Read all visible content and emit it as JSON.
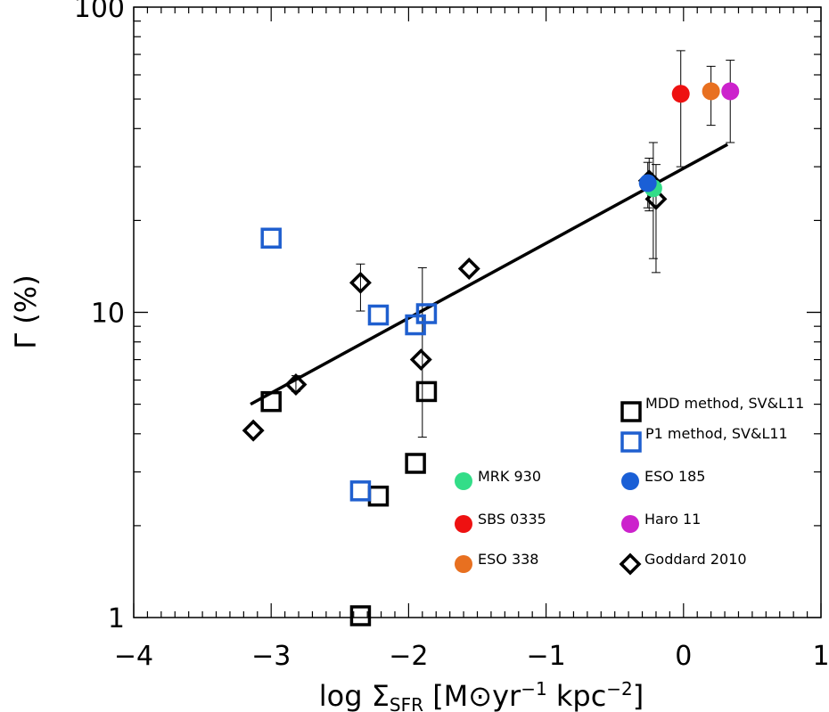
{
  "chart_data": {
    "type": "scatter",
    "title": "",
    "xlabel": "log Σ",
    "xlabel_sub": "SFR",
    "xlabel_units": " [M⊙yr",
    "xlabel_exp1": "−1",
    "xlabel_mid": " kpc",
    "xlabel_exp2": "−2",
    "xlabel_end": "]",
    "ylabel": "Γ (%)",
    "y_scale": "log",
    "xlim": [
      -4,
      1
    ],
    "ylim": [
      1,
      100
    ],
    "x_tick_labels": [
      "−4",
      "−3",
      "−2",
      "−1",
      "0",
      "1"
    ],
    "x_tick_values": [
      -4,
      -3,
      -2,
      -1,
      0,
      1
    ],
    "y_tick_labels": [
      "1",
      "10",
      "100"
    ],
    "y_tick_values": [
      1,
      10,
      100
    ],
    "fit_line": {
      "x": [
        -3.15,
        0.32
      ],
      "y": [
        5.0,
        35.5
      ],
      "color": "#000000"
    },
    "series": [
      {
        "name": "MDD method, SV&L11",
        "marker": "square",
        "color": "#000000",
        "points": [
          {
            "x": -3.0,
            "y": 5.1
          },
          {
            "x": -2.22,
            "y": 2.5
          },
          {
            "x": -1.95,
            "y": 3.2
          },
          {
            "x": -1.87,
            "y": 5.5
          },
          {
            "x": -2.35,
            "y": 1.0
          }
        ]
      },
      {
        "name": "P1 method, SV&L11",
        "marker": "square",
        "color": "#1f5fcf",
        "points": [
          {
            "x": -3.0,
            "y": 17.5
          },
          {
            "x": -2.22,
            "y": 9.8
          },
          {
            "x": -1.95,
            "y": 9.1
          },
          {
            "x": -1.87,
            "y": 9.9
          },
          {
            "x": -2.35,
            "y": 2.6
          }
        ]
      },
      {
        "name": "Goddard 2010",
        "marker": "diamond",
        "color": "#000000",
        "points": [
          {
            "x": -3.13,
            "y": 4.1
          },
          {
            "x": -2.82,
            "y": 5.8,
            "err_lo": 5.5,
            "err_hi": 6.2
          },
          {
            "x": -2.35,
            "y": 12.5,
            "err_lo": 10.1,
            "err_hi": 14.4
          },
          {
            "x": -1.91,
            "y": 7.0
          },
          {
            "x": -1.56,
            "y": 13.9
          },
          {
            "x": -0.25,
            "y": 27.0,
            "err_lo": 21.5,
            "err_hi": 32.0
          },
          {
            "x": -0.2,
            "y": 23.5,
            "err_lo": 13.5,
            "err_hi": 30.5
          },
          {
            "x": -1.9,
            "y": 5.5,
            "err_lo": 3.9,
            "err_hi": 14.0,
            "hidden_marker": true
          }
        ]
      },
      {
        "name": "MRK 930",
        "marker": "circle",
        "color": "#33dd88",
        "points": [
          {
            "x": -0.22,
            "y": 25.5,
            "err_lo": 15.0,
            "err_hi": 36.0
          }
        ]
      },
      {
        "name": "ESO 185",
        "marker": "circle",
        "color": "#1a5fd6",
        "points": [
          {
            "x": -0.26,
            "y": 26.5,
            "err_lo": 22.0,
            "err_hi": 31.0
          }
        ]
      },
      {
        "name": "SBS 0335",
        "marker": "circle",
        "color": "#ee1111",
        "points": [
          {
            "x": -0.02,
            "y": 52.0,
            "err_lo": 30.0,
            "err_hi": 72.0
          }
        ]
      },
      {
        "name": "ESO 338",
        "marker": "circle",
        "color": "#e87020",
        "points": [
          {
            "x": 0.2,
            "y": 53.0,
            "err_lo": 41.0,
            "err_hi": 64.0
          }
        ]
      },
      {
        "name": "Haro 11",
        "marker": "circle",
        "color": "#cc22cc",
        "points": [
          {
            "x": 0.34,
            "y": 53.0,
            "err_lo": 36.0,
            "err_hi": 67.0
          }
        ]
      }
    ],
    "legend": [
      {
        "label": "MDD method, SV&L11",
        "marker": "square",
        "color": "#000000"
      },
      {
        "label": "P1 method, SV&L11",
        "marker": "square",
        "color": "#1f5fcf"
      },
      {
        "label": "MRK 930",
        "marker": "circle",
        "color": "#33dd88"
      },
      {
        "label": "ESO 185",
        "marker": "circle",
        "color": "#1a5fd6"
      },
      {
        "label": "SBS 0335",
        "marker": "circle",
        "color": "#ee1111"
      },
      {
        "label": "Haro 11",
        "marker": "circle",
        "color": "#cc22cc"
      },
      {
        "label": "ESO 338",
        "marker": "circle",
        "color": "#e87020"
      },
      {
        "label": "Goddard 2010",
        "marker": "diamond",
        "color": "#000000"
      }
    ]
  }
}
